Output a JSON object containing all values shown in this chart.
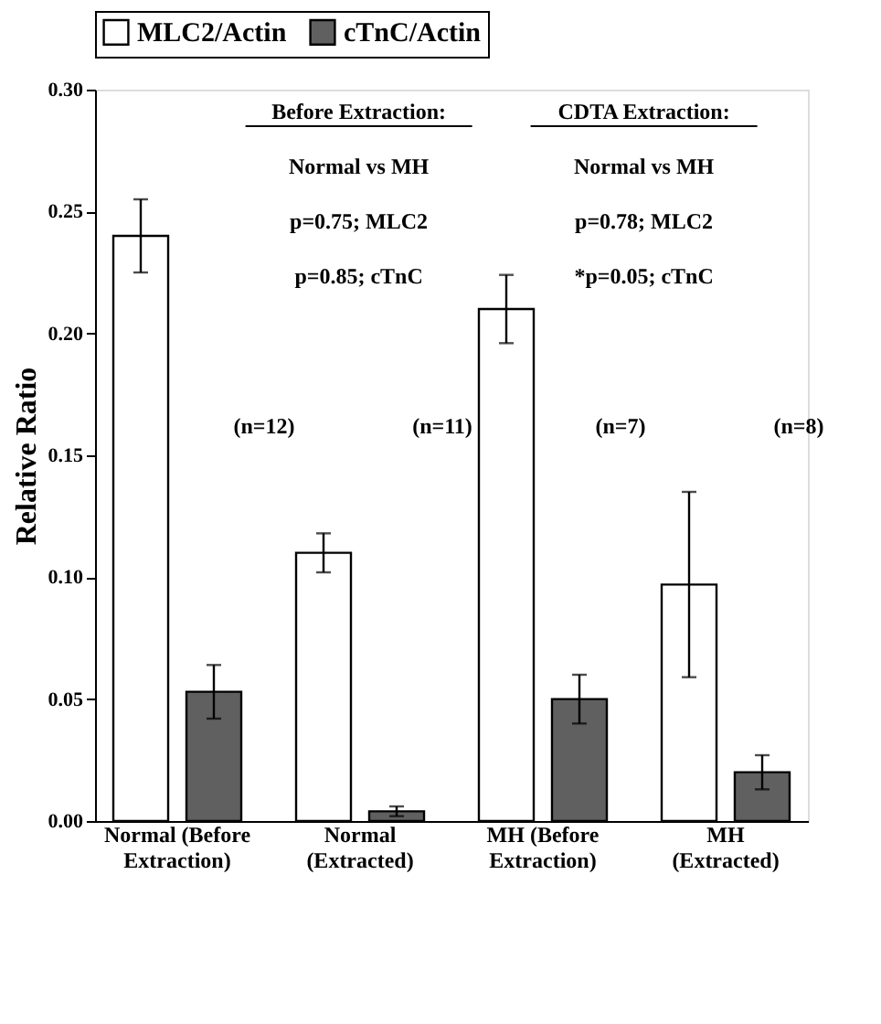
{
  "chart_data": {
    "type": "bar",
    "ylabel": "Relative Ratio",
    "categories": [
      "Normal (Before Extraction)",
      "Normal (Extracted)",
      "MH (Before Extraction)",
      "MH (Extracted)"
    ],
    "series": [
      {
        "name": "MLC2/Actin",
        "color": "#ffffff",
        "values": [
          0.24,
          0.11,
          0.21,
          0.097
        ],
        "errors": [
          0.015,
          0.008,
          0.014,
          0.038
        ]
      },
      {
        "name": "cTnC/Actin",
        "color": "#606060",
        "values": [
          0.053,
          0.004,
          0.05,
          0.02
        ],
        "errors": [
          0.011,
          0.002,
          0.01,
          0.007
        ]
      }
    ],
    "ylim": [
      0,
      0.3
    ],
    "yticks": [
      {
        "value": 0,
        "label": "0.00"
      },
      {
        "value": 0.05,
        "label": "0.05"
      },
      {
        "value": 0.1,
        "label": "0.10"
      },
      {
        "value": 0.15,
        "label": "0.15"
      },
      {
        "value": 0.2,
        "label": "0.20"
      },
      {
        "value": 0.25,
        "label": "0.25"
      },
      {
        "value": 0.3,
        "label": "0.30"
      }
    ],
    "grid": false,
    "legend": "top",
    "annotations": [
      "Before Extraction:",
      "Normal vs MH",
      "p=0.75; MLC2",
      "p=0.85; cTnC",
      "CDTA Extraction:",
      "Normal vs MH",
      "p=0.78; MLC2",
      "*p=0.05; cTnC",
      "(n=12)",
      "(n=11)",
      "(n=7)",
      "(n=8)"
    ]
  }
}
